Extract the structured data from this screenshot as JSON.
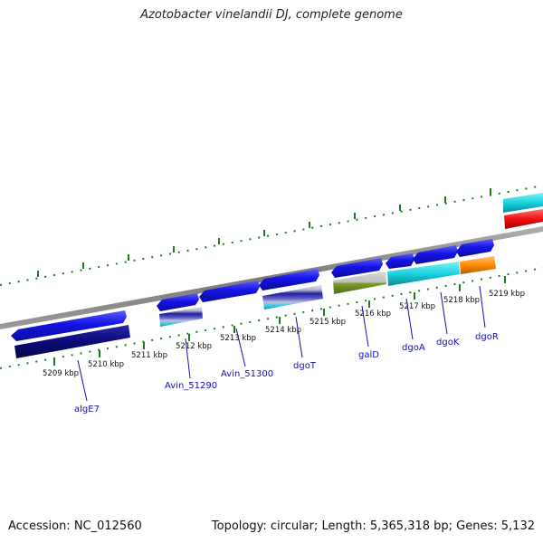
{
  "title": "Azotobacter vinelandii DJ, complete genome",
  "accession_text": "Accession: NC_012560",
  "summary_text": "Topology: circular; Length: 5,365,318 bp; Genes: 5,132",
  "colors": {
    "backbone": "#8c8c8c",
    "tick": "#1e7a1e",
    "gene_label": "#1010b0",
    "forward_gene": "#1414e6",
    "reverse_gene_dark": "#0a0a78",
    "cyan": "#18d2e0",
    "red": "#ee1010",
    "orange": "#ff8c00",
    "olive": "#6b8e23"
  },
  "scale_labels": [
    "5209 kbp",
    "5210 kbp",
    "5211 kbp",
    "5212 kbp",
    "5213 kbp",
    "5214 kbp",
    "5215 kbp",
    "5216 kbp",
    "5217 kbp",
    "5218 kbp",
    "5219 kbp"
  ],
  "gene_labels": [
    "algE7",
    "Avin_51290",
    "Avin_51300",
    "dgoT",
    "galD",
    "dgoA",
    "dgoK",
    "dgoR"
  ]
}
